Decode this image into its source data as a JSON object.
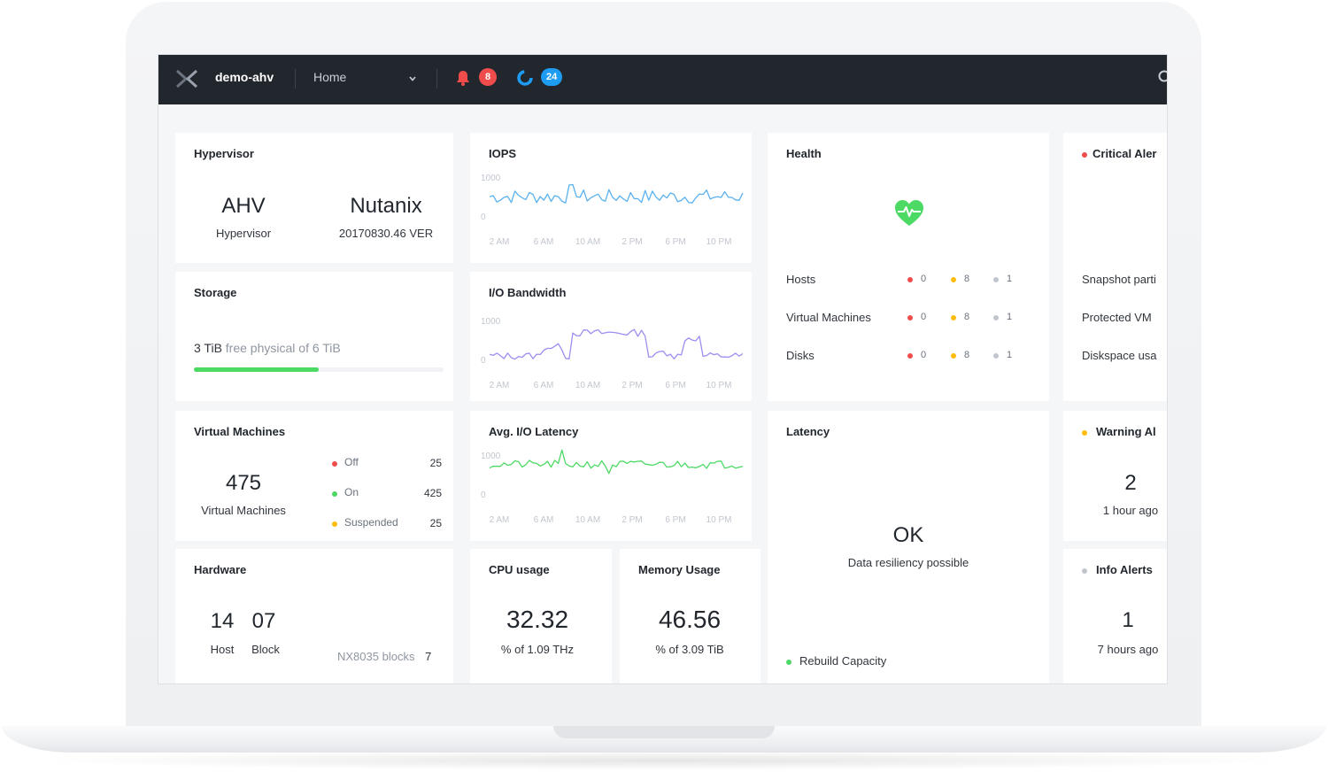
{
  "topbar": {
    "cluster_name": "demo-ahv",
    "nav_label": "Home",
    "alerts_count": "8",
    "tasks_count": "24"
  },
  "hypervisor": {
    "title": "Hypervisor",
    "type_value": "AHV",
    "type_label": "Hypervisor",
    "vendor_value": "Nutanix",
    "version_label": "20170830.46 VER"
  },
  "storage": {
    "title": "Storage",
    "free_amount": "3 TiB",
    "free_text": "free physical of 6 TiB",
    "usage_fraction": 0.5,
    "bar_color": "#4cd964"
  },
  "iops": {
    "title": "IOPS",
    "y_max": "1000",
    "y_min": "0",
    "x_ticks": [
      "2 AM",
      "6 AM",
      "10 AM",
      "2 PM",
      "6 PM",
      "10 PM"
    ],
    "color": "#5ab1ef"
  },
  "io_bandwidth": {
    "title": "I/O Bandwidth",
    "y_max": "1000",
    "y_min": "0",
    "x_ticks": [
      "2 AM",
      "6 AM",
      "10 AM",
      "2 PM",
      "6 PM",
      "10 PM"
    ],
    "color": "#9b8ef0"
  },
  "avg_latency": {
    "title": "Avg. I/O Latency",
    "y_max": "1000",
    "y_min": "0",
    "x_ticks": [
      "2 AM",
      "6 AM",
      "10 AM",
      "2 PM",
      "6 PM",
      "10 PM"
    ],
    "color": "#4cd964"
  },
  "health": {
    "title": "Health",
    "rows": [
      {
        "label": "Hosts",
        "critical": "0",
        "warning": "8",
        "ok": "1"
      },
      {
        "label": "Virtual Machines",
        "critical": "0",
        "warning": "8",
        "ok": "1"
      },
      {
        "label": "Disks",
        "critical": "0",
        "warning": "8",
        "ok": "1"
      }
    ],
    "heart_color": "#4cd964"
  },
  "critical_alerts": {
    "title": "Critical Aler",
    "items": [
      "Snapshot parti",
      "Protected VM",
      "Diskspace usa"
    ]
  },
  "virtual_machines": {
    "title": "Virtual Machines",
    "total_value": "475",
    "total_label": "Virtual Machines",
    "states": [
      {
        "label": "Off",
        "count": "25",
        "color": "#f04c4c"
      },
      {
        "label": "On",
        "count": "425",
        "color": "#4cd964"
      },
      {
        "label": "Suspended",
        "count": "25",
        "color": "#ffbc0b"
      }
    ]
  },
  "latency": {
    "title": "Latency",
    "status_value": "OK",
    "status_text": "Data resiliency possible",
    "footer_label": "Rebuild Capacity"
  },
  "warning_alerts": {
    "title": "Warning Al",
    "count": "2",
    "time": "1 hour ago"
  },
  "hardware": {
    "title": "Hardware",
    "host_value": "14",
    "host_label": "Host",
    "block_value": "07",
    "block_label": "Block",
    "model_label": "NX8035 blocks",
    "model_count": "7"
  },
  "cpu": {
    "title": "CPU usage",
    "value": "32.32",
    "label": "% of 1.09 THz"
  },
  "memory": {
    "title": "Memory Usage",
    "value": "46.56",
    "label": "% of 3.09 TiB"
  },
  "info_alerts": {
    "title": "Info Alerts",
    "count": "1",
    "time": "7 hours ago"
  },
  "colors": {
    "critical": "#f04c4c",
    "warning": "#ffbc0b",
    "ok": "#c1c6ce",
    "success": "#4cd964"
  }
}
